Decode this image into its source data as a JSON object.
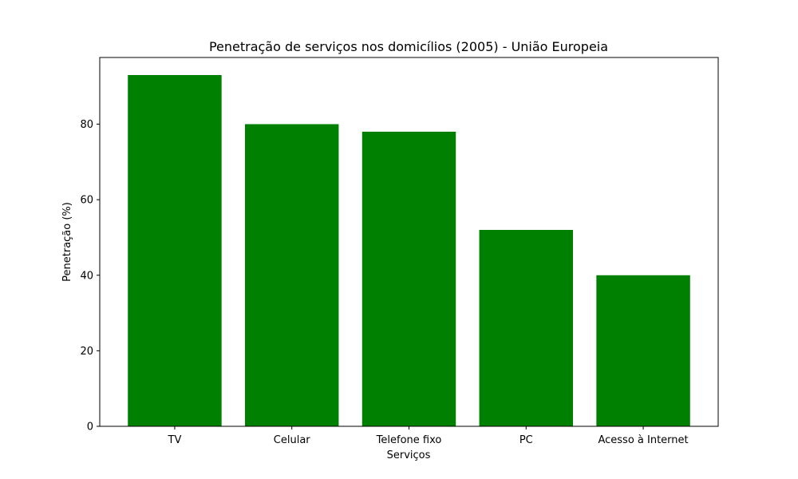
{
  "chart_data": {
    "type": "bar",
    "title": "Penetração de serviços nos domicílios (2005) - União Europeia",
    "xlabel": "Serviços",
    "ylabel": "Penetração (%)",
    "categories": [
      "TV",
      "Celular",
      "Telefone fixo",
      "PC",
      "Acesso à Internet"
    ],
    "values": [
      93,
      80,
      78,
      52,
      40
    ],
    "ylim": [
      0,
      97.65
    ],
    "yticks": [
      0,
      20,
      40,
      60,
      80
    ],
    "bar_color": "#008000",
    "grid": false,
    "legend": "none"
  }
}
